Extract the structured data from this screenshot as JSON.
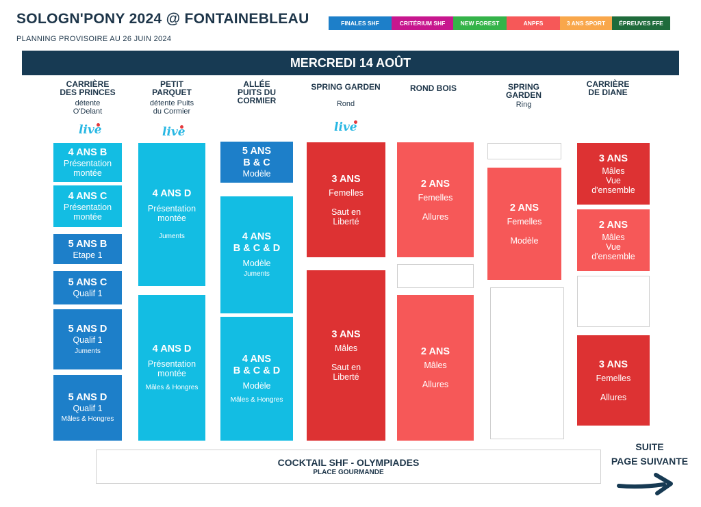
{
  "header": {
    "title": "SOLOGN'PONY 2024 @ FONTAINEBLEAU",
    "subtitle": "PLANNING PROVISOIRE AU 26 JUIN 2024"
  },
  "legend": [
    {
      "label": "FINALES SHF",
      "color": "#1d7fc9"
    },
    {
      "label": "CRITÉRIUM SHF",
      "color": "#c7168e"
    },
    {
      "label": "NEW FOREST",
      "color": "#34b349"
    },
    {
      "label": "ANPFS",
      "color": "#f65858"
    },
    {
      "label": "3 ANS SPORT",
      "color": "#f9a74b"
    },
    {
      "label": "ÉPREUVES FFE",
      "color": "#1f6b3b"
    }
  ],
  "day": "MERCREDI 14 AOÛT",
  "live_label": "live",
  "columns": [
    {
      "title": "CARRIÈRE\nDES PRINCES",
      "sub": "détente\nO'Delant"
    },
    {
      "title": "PETIT\nPARQUET",
      "sub": "détente Puits\ndu Cormier"
    },
    {
      "title": "ALLÉE\nPUITS DU\nCORMIER",
      "sub": ""
    },
    {
      "title": "SPRING GARDEN",
      "sub": "Rond"
    },
    {
      "title": "ROND BOIS",
      "sub": ""
    },
    {
      "title": "SPRING\nGARDEN",
      "sub": "Ring"
    },
    {
      "title": "CARRIÈRE\nDE DIANE",
      "sub": ""
    }
  ],
  "blocks": {
    "c1": [
      {
        "a": "4 ANS B",
        "b": "Présentation\nmontée",
        "c": ""
      },
      {
        "a": "4 ANS C",
        "b": "Présentation\nmontée",
        "c": ""
      },
      {
        "a": "5 ANS B",
        "b": "Etape 1",
        "c": ""
      },
      {
        "a": "5 ANS C",
        "b": "Qualif 1",
        "c": ""
      },
      {
        "a": "5 ANS D",
        "b": "Qualif 1",
        "c": "Juments"
      },
      {
        "a": "5 ANS D",
        "b": "Qualif 1",
        "c": "Mâles & Hongres"
      }
    ],
    "c2": [
      {
        "a": "4 ANS D",
        "b": "Présentation\nmontée",
        "c": "Juments"
      },
      {
        "a": "4 ANS D",
        "b": "Présentation\nmontée",
        "c": "Mâles & Hongres"
      }
    ],
    "c3": [
      {
        "a": "5 ANS\nB & C",
        "b": "Modèle",
        "c": ""
      },
      {
        "a": "4 ANS\nB & C & D",
        "b": "Modèle",
        "c": "Juments"
      },
      {
        "a": "4 ANS\nB & C & D",
        "b": "Modèle",
        "c": "Mâles & Hongres"
      }
    ],
    "c4": [
      {
        "a": "3 ANS",
        "b": "Femelles\n\nSaut en\nLiberté",
        "c": ""
      },
      {
        "a": "3 ANS",
        "b": "Mâles\n\nSaut en\nLiberté",
        "c": ""
      }
    ],
    "c5": [
      {
        "a": "2 ANS",
        "b": "Femelles\n\nAllures",
        "c": ""
      },
      {
        "a": "2 ANS",
        "b": "Mâles\n\nAllures",
        "c": ""
      }
    ],
    "c6": [
      {
        "a": "2 ANS",
        "b": "Femelles\n\nModèle",
        "c": ""
      }
    ],
    "c7": [
      {
        "a": "3 ANS",
        "b": "Mâles\nVue\nd'ensemble",
        "c": ""
      },
      {
        "a": "2 ANS",
        "b": "Mâles\nVue\nd'ensemble",
        "c": ""
      },
      {
        "a": "3 ANS",
        "b": "Femelles\n\nAllures",
        "c": ""
      }
    ]
  },
  "footer": {
    "cocktail_title": "COCKTAIL SHF - OLYMPIADES",
    "cocktail_sub": "PLACE GOURMANDE",
    "suite": "SUITE\nPAGE SUIVANTE"
  }
}
